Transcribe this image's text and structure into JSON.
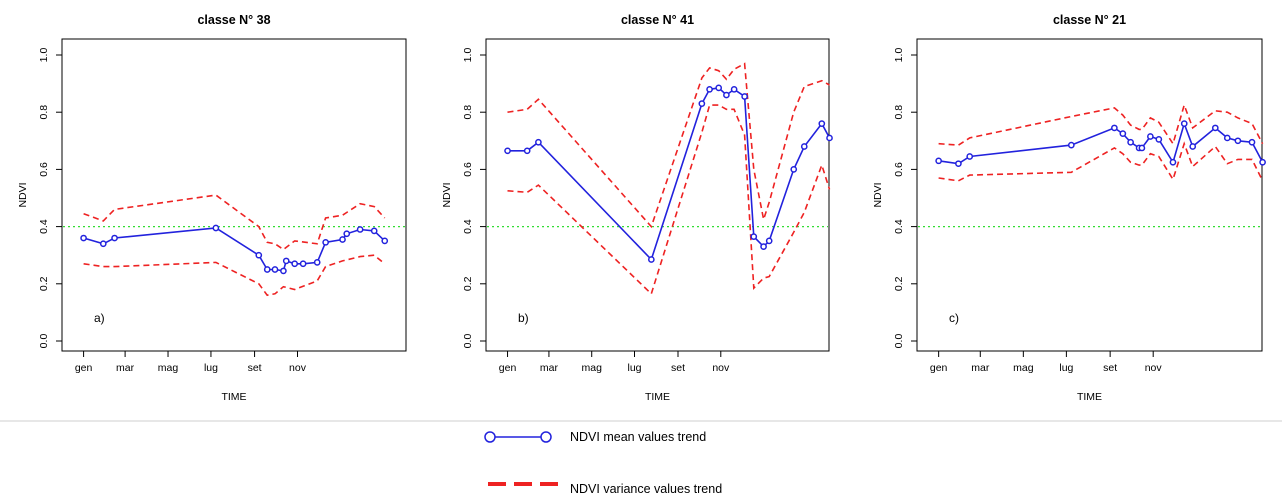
{
  "chart_data": [
    {
      "type": "line",
      "title": "classe N° 38",
      "panel_label": "a)",
      "xlabel": "TIME",
      "ylabel": "NDVI",
      "x_ticks": [
        "gen",
        "mar",
        "mag",
        "lug",
        "set",
        "nov"
      ],
      "y_ticks": [
        "0.0",
        "0.2",
        "0.4",
        "0.6",
        "0.8",
        "1.0"
      ],
      "ylim": [
        0,
        1
      ],
      "reference_line": 0.4,
      "mean": {
        "x": [
          1,
          29,
          45,
          189,
          250,
          262,
          273,
          285,
          289,
          301,
          313,
          333,
          345,
          369,
          375,
          394,
          414,
          429
        ],
        "y": [
          0.36,
          0.34,
          0.36,
          0.395,
          0.3,
          0.25,
          0.25,
          0.245,
          0.28,
          0.27,
          0.27,
          0.275,
          0.345,
          0.355,
          0.375,
          0.39,
          0.385,
          0.35
        ]
      },
      "upper": {
        "x": [
          1,
          29,
          45,
          189,
          250,
          262,
          273,
          285,
          301,
          333,
          345,
          369,
          394,
          414,
          429
        ],
        "y": [
          0.445,
          0.42,
          0.46,
          0.51,
          0.4,
          0.345,
          0.34,
          0.32,
          0.35,
          0.34,
          0.43,
          0.44,
          0.48,
          0.47,
          0.43
        ]
      },
      "lower": {
        "x": [
          1,
          29,
          45,
          189,
          250,
          262,
          273,
          285,
          301,
          333,
          345,
          369,
          394,
          414,
          429
        ],
        "y": [
          0.27,
          0.26,
          0.26,
          0.275,
          0.2,
          0.16,
          0.165,
          0.19,
          0.18,
          0.21,
          0.26,
          0.28,
          0.295,
          0.3,
          0.27
        ]
      }
    },
    {
      "type": "line",
      "title": "classe N° 41",
      "panel_label": "b)",
      "xlabel": "TIME",
      "ylabel": "NDVI",
      "x_ticks": [
        "gen",
        "mar",
        "mag",
        "lug",
        "set",
        "nov"
      ],
      "y_ticks": [
        "0.0",
        "0.2",
        "0.4",
        "0.6",
        "0.8",
        "1.0"
      ],
      "ylim": [
        0,
        1
      ],
      "reference_line": 0.4,
      "mean": {
        "x": [
          1,
          29,
          45,
          206,
          278,
          289,
          302,
          313,
          324,
          339,
          352,
          366,
          374,
          409,
          424,
          449,
          460
        ],
        "y": [
          0.665,
          0.665,
          0.695,
          0.285,
          0.83,
          0.88,
          0.885,
          0.86,
          0.88,
          0.855,
          0.365,
          0.33,
          0.35,
          0.6,
          0.68,
          0.76,
          0.71
        ]
      },
      "upper": {
        "x": [
          1,
          29,
          45,
          206,
          278,
          289,
          302,
          313,
          324,
          339,
          352,
          366,
          374,
          409,
          424,
          449,
          460
        ],
        "y": [
          0.8,
          0.81,
          0.845,
          0.4,
          0.92,
          0.955,
          0.945,
          0.915,
          0.95,
          0.97,
          0.6,
          0.425,
          0.485,
          0.8,
          0.89,
          0.91,
          0.895
        ]
      },
      "lower": {
        "x": [
          1,
          29,
          45,
          206,
          278,
          289,
          302,
          313,
          324,
          339,
          352,
          366,
          374,
          409,
          424,
          449,
          460
        ],
        "y": [
          0.525,
          0.52,
          0.545,
          0.165,
          0.73,
          0.825,
          0.825,
          0.81,
          0.81,
          0.72,
          0.185,
          0.22,
          0.225,
          0.38,
          0.45,
          0.615,
          0.53
        ]
      }
    },
    {
      "type": "line",
      "title": "classe N° 21",
      "panel_label": "c)",
      "xlabel": "TIME",
      "ylabel": "NDVI",
      "x_ticks": [
        "gen",
        "mar",
        "mag",
        "lug",
        "set",
        "nov"
      ],
      "y_ticks": [
        "0.0",
        "0.2",
        "0.4",
        "0.6",
        "0.8",
        "1.0"
      ],
      "ylim": [
        0,
        1
      ],
      "reference_line": 0.4,
      "mean": {
        "x": [
          1,
          29,
          45,
          189,
          250,
          262,
          273,
          285,
          289,
          301,
          313,
          333,
          349,
          361,
          393,
          410,
          425,
          445,
          460
        ],
        "y": [
          0.63,
          0.62,
          0.645,
          0.685,
          0.745,
          0.725,
          0.695,
          0.675,
          0.675,
          0.715,
          0.705,
          0.625,
          0.76,
          0.68,
          0.745,
          0.71,
          0.7,
          0.695,
          0.625
        ]
      },
      "upper": {
        "x": [
          1,
          29,
          45,
          189,
          250,
          262,
          273,
          285,
          289,
          301,
          313,
          333,
          349,
          361,
          393,
          410,
          425,
          445,
          460
        ],
        "y": [
          0.69,
          0.685,
          0.71,
          0.785,
          0.815,
          0.79,
          0.755,
          0.74,
          0.74,
          0.78,
          0.765,
          0.69,
          0.825,
          0.745,
          0.805,
          0.8,
          0.78,
          0.76,
          0.69
        ]
      },
      "lower": {
        "x": [
          1,
          29,
          45,
          189,
          250,
          262,
          273,
          285,
          289,
          301,
          313,
          333,
          349,
          361,
          393,
          410,
          425,
          445,
          460
        ],
        "y": [
          0.57,
          0.56,
          0.58,
          0.59,
          0.675,
          0.655,
          0.625,
          0.615,
          0.615,
          0.655,
          0.645,
          0.565,
          0.69,
          0.61,
          0.68,
          0.62,
          0.635,
          0.635,
          0.56
        ]
      }
    }
  ],
  "colors": {
    "mean": "#2222dd",
    "variance": "#ee2222",
    "reference": "#33dd33",
    "axis": "#000000"
  },
  "legend": {
    "mean_label": "NDVI mean values trend",
    "variance_label": "NDVI variance values trend"
  }
}
